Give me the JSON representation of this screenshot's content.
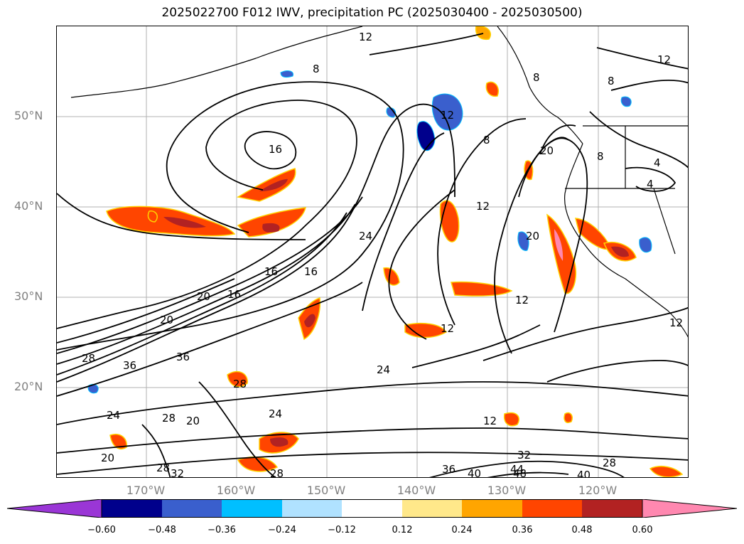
{
  "title": "2025022700 F012 IWV, precipitation PC (2025030400 - 2025030500)",
  "lat_labels": [
    "50°N",
    "40°N",
    "30°N",
    "20°N"
  ],
  "lon_labels": [
    "170°W",
    "160°W",
    "150°W",
    "140°W",
    "130°W",
    "120°W"
  ],
  "colorbar": {
    "ticks": [
      "−0.60",
      "−0.48",
      "−0.36",
      "−0.24",
      "−0.12",
      "0.12",
      "0.24",
      "0.36",
      "0.48",
      "0.60"
    ],
    "colors": [
      "#9a36d6",
      "#00008c",
      "#3a5fcd",
      "#00bfff",
      "#b0e2ff",
      "#ffffff",
      "#ffe88a",
      "#ffa500",
      "#ff4500",
      "#b22222",
      "#ff88b0"
    ]
  },
  "contour_labels": [
    "12",
    "8",
    "12",
    "8",
    "8",
    "8",
    "16",
    "12",
    "8",
    "20",
    "4",
    "4",
    "12",
    "20",
    "24",
    "16",
    "16",
    "20",
    "20",
    "16",
    "12",
    "12",
    "12",
    "28",
    "36",
    "36",
    "28",
    "24",
    "28",
    "20",
    "24",
    "24",
    "28",
    "28",
    "32",
    "36",
    "40",
    "44",
    "48",
    "32",
    "40",
    "28",
    "20",
    "12"
  ]
}
